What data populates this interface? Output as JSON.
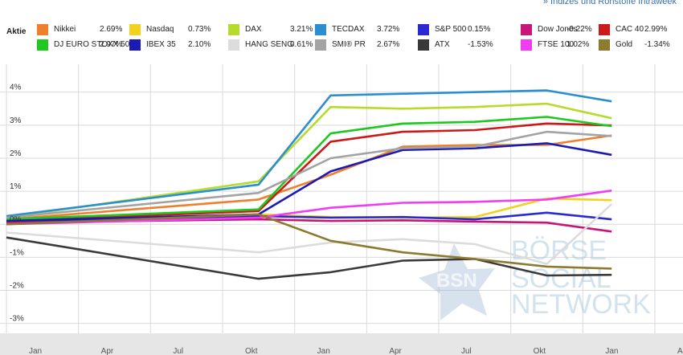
{
  "header": {
    "link_text": "» Indizes und Rohstoffe Intraweek"
  },
  "legend": {
    "title": "Aktie"
  },
  "watermark": {
    "badge": "BSN",
    "line1": "BÖRSE",
    "line2": "SOCIAL",
    "line3": "NETWORK"
  },
  "colors": {
    "grid": "#d9d9d9",
    "axis_band": "#e6e6e6",
    "watermark": "#9cc3d9",
    "star": "#8fa9cf"
  },
  "chart_data": {
    "type": "line",
    "x": [
      0,
      1,
      2,
      3,
      4,
      5,
      6,
      7,
      8,
      9
    ],
    "x_tick_labels": [
      "Jan",
      "Apr",
      "Jul",
      "Okt",
      "Jan",
      "Apr",
      "Jul",
      "Okt",
      "Jan",
      "Apr"
    ],
    "y_ticks": [
      4,
      3,
      2,
      1,
      0,
      -1,
      -2,
      -3
    ],
    "y_tick_labels": [
      "4%",
      "3%",
      "2%",
      "1%",
      "0%",
      "-1%",
      "-2%",
      "-3%"
    ],
    "ylim": [
      -3.3,
      4.6
    ],
    "grid": true,
    "legend_position": "top",
    "series": [
      {
        "name": "Nikkei",
        "color": "#f07f2d",
        "value_label": "2.69%",
        "x": [
          0,
          3.5,
          4.5,
          5.5,
          6.5,
          7.5,
          8.4
        ],
        "values": [
          0.15,
          0.75,
          1.5,
          2.35,
          2.4,
          2.4,
          2.69
        ]
      },
      {
        "name": "Nasdaq",
        "color": "#f2d21e",
        "value_label": "0.73%",
        "x": [
          0,
          3.5,
          4.5,
          5.5,
          6.5,
          7.5,
          8.4
        ],
        "values": [
          0.05,
          0.3,
          0.22,
          0.2,
          0.22,
          0.78,
          0.73
        ]
      },
      {
        "name": "DAX",
        "color": "#b5dc2c",
        "value_label": "3.21%",
        "x": [
          0,
          3.5,
          4.5,
          5.5,
          6.5,
          7.5,
          8.4
        ],
        "values": [
          0.2,
          1.3,
          3.55,
          3.5,
          3.55,
          3.65,
          3.21
        ]
      },
      {
        "name": "TECDAX",
        "color": "#2a8fd0",
        "value_label": "3.72%",
        "x": [
          0,
          3.5,
          4.5,
          5.5,
          6.5,
          7.5,
          8.4
        ],
        "values": [
          0.25,
          1.2,
          3.9,
          3.95,
          4.0,
          4.05,
          3.72
        ]
      },
      {
        "name": "S&P 500",
        "color": "#2a2ad0",
        "value_label": "0.15%",
        "x": [
          0,
          3.5,
          4.5,
          5.5,
          6.5,
          7.5,
          8.4
        ],
        "values": [
          0.05,
          0.25,
          0.2,
          0.22,
          0.15,
          0.35,
          0.15
        ]
      },
      {
        "name": "Dow Jones",
        "color": "#c8157a",
        "value_label": "-0.22%",
        "x": [
          0,
          3.5,
          4.5,
          5.5,
          6.5,
          7.5,
          8.4
        ],
        "values": [
          0.05,
          0.15,
          0.1,
          0.12,
          0.08,
          0.05,
          -0.22
        ]
      },
      {
        "name": "CAC 40",
        "color": "#cc1a1a",
        "value_label": "2.99%",
        "x": [
          0,
          3.5,
          4.5,
          5.5,
          6.5,
          7.5,
          8.4
        ],
        "values": [
          0.1,
          0.4,
          2.5,
          2.8,
          2.85,
          3.05,
          2.99
        ]
      },
      {
        "name": "DJ EURO STOXX 50",
        "color": "#1ec81e",
        "value_label": "2.97%",
        "x": [
          0,
          3.5,
          4.5,
          5.5,
          6.5,
          7.5,
          8.4
        ],
        "values": [
          0.15,
          0.45,
          2.75,
          3.05,
          3.1,
          3.25,
          2.97
        ]
      },
      {
        "name": "IBEX 35",
        "color": "#1a1ab5",
        "value_label": "2.10%",
        "x": [
          0,
          3.5,
          4.5,
          5.5,
          6.5,
          7.5,
          8.4
        ],
        "values": [
          0.1,
          0.3,
          1.6,
          2.25,
          2.3,
          2.45,
          2.1
        ]
      },
      {
        "name": "HANG SENG",
        "color": "#dcdcdc",
        "value_label": "0.61%",
        "x": [
          0,
          3.5,
          4.5,
          5.5,
          6.5,
          7.5,
          8.4
        ],
        "values": [
          -0.25,
          -0.85,
          -0.55,
          -0.45,
          -0.6,
          -1.2,
          0.61
        ]
      },
      {
        "name": "SMI® PR",
        "color": "#a3a3a3",
        "value_label": "2.67%",
        "x": [
          0,
          3.5,
          4.5,
          5.5,
          6.5,
          7.5,
          8.4
        ],
        "values": [
          0.2,
          0.95,
          2.0,
          2.3,
          2.35,
          2.8,
          2.67
        ]
      },
      {
        "name": "ATX",
        "color": "#3a3a3a",
        "value_label": "-1.53%",
        "x": [
          0,
          3.5,
          4.5,
          5.5,
          6.5,
          7.5,
          8.4
        ],
        "values": [
          -0.4,
          -1.65,
          -1.45,
          -1.1,
          -1.05,
          -1.55,
          -1.53
        ]
      },
      {
        "name": "FTSE 100",
        "color": "#f23cf2",
        "value_label": "1.02%",
        "x": [
          0,
          3.5,
          4.5,
          5.5,
          6.5,
          7.5,
          8.4
        ],
        "values": [
          0.0,
          0.2,
          0.5,
          0.65,
          0.68,
          0.75,
          1.02
        ]
      },
      {
        "name": "Gold",
        "color": "#8c7a2e",
        "value_label": "-1.34%",
        "x": [
          0,
          3.5,
          4.5,
          5.5,
          6.5,
          7.5,
          8.4
        ],
        "values": [
          0.0,
          0.3,
          -0.5,
          -0.85,
          -1.05,
          -1.28,
          -1.34
        ]
      }
    ]
  }
}
